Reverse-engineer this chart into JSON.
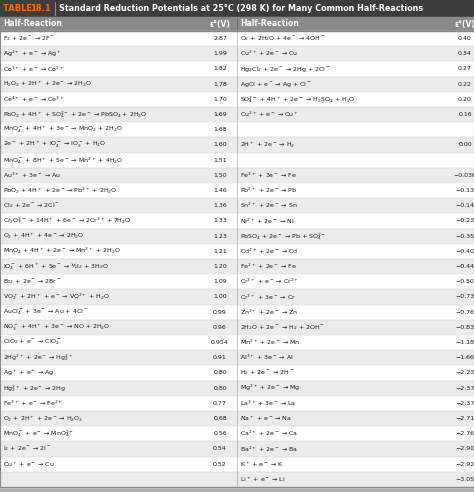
{
  "title": "Standard Reduction Potentials at 25°C (298 K) for Many Common Half-Reactions",
  "table_label": "TABLE 18.1",
  "col_headers": [
    "Half-Reaction",
    "ε°(V)",
    "Half-Reaction",
    "ε°(V)"
  ],
  "left_reactions": [
    "F$_2$ + 2e$^-$ → 2F$^-$",
    "Ag$^{2+}$ + e$^-$ → Ag$^+$",
    "Co$^{3+}$ + e$^-$ → Co$^{2+}$",
    "H$_2$O$_2$ + 2H$^+$ + 2e$^-$ → 2H$_2$O",
    "Ce$^{4+}$ + e$^-$ → Ce$^{3+}$",
    "PbO$_2$ + 4H$^+$ + SO$_4^{2-}$ + 2e$^-$ → PbSO$_4$ + 2H$_2$O",
    "MnO$_4^-$ + 4H$^+$ + 3e$^-$ → MnO$_2$ + 2H$_2$O",
    "2e$^-$ + 2H$^+$ + IO$_4^-$ → IO$_3^-$ + H$_2$O",
    "MnO$_4^-$ + 8H$^+$ + 5e$^-$ → Mn$^{2+}$ + 4H$_2$O",
    "Au$^{3+}$ + 3e$^-$ → Au",
    "PbO$_2$ + 4H$^+$ + 2e$^-$ → Pb$^{2+}$ + 2H$_2$O",
    "Cl$_2$ + 2e$^-$ → 2Cl$^-$",
    "Cr$_2$O$_7^{2-}$ + 14H$^+$ + 6e$^-$ → 2Cr$^{3+}$ + 7H$_2$O",
    "O$_2$ + 4H$^+$ + 4e$^-$ → 2H$_2$O",
    "MnO$_2$ + 4H$^+$ + 2e$^-$ → Mn$^{2+}$ + 2H$_2$O",
    "IO$_3^-$ + 6H$^+$ + 5e$^-$ → ½I$_2$ + 3H$_2$O",
    "Br$_2$ + 2e$^-$ → 2Br$^-$",
    "VO$_2^+$ + 2H$^+$ + e$^-$ → VO$^{2+}$ + H$_2$O",
    "AuCl$_4^-$ + 3e$^-$ → Au + 4Cl$^-$",
    "NO$_3^-$ + 4H$^+$ + 3e$^-$ → NO + 2H$_2$O",
    "ClO$_2$ + e$^-$ → ClO$_2^-$",
    "2Hg$^{2+}$ + 2e$^-$ → Hg$_2^{2+}$",
    "Ag$^+$ + e$^-$ → Ag",
    "Hg$_2^{2+}$ + 2e$^-$ → 2Hg",
    "Fe$^{3+}$ + e$^-$ → Fe$^{2+}$",
    "O$_2$ + 2H$^+$ + 2e$^-$ → H$_2$O$_2$",
    "MnO$_4^-$ + e$^-$ → MnO$_4^{2-}$",
    "I$_2$ + 2e$^-$ → 2I$^-$",
    "Cu$^+$ + e$^-$ → Cu"
  ],
  "left_values": [
    "2.87",
    "1.99",
    "1.82",
    "1.78",
    "1.70",
    "1.69",
    "1.68",
    "1.60",
    "1.51",
    "1.50",
    "1.46",
    "1.36",
    "1.33",
    "1.23",
    "1.21",
    "1.20",
    "1.09",
    "1.00",
    "0.99",
    "0.96",
    "0.954",
    "0.91",
    "0.80",
    "0.80",
    "0.77",
    "0.68",
    "0.56",
    "0.54",
    "0.52"
  ],
  "right_data": [
    [
      "O$_2$ + 2H$_2$O + 4e$^-$ → 4OH$^-$",
      "0.40"
    ],
    [
      "Cu$^{2+}$ + 2e$^-$ → Cu",
      "0.34"
    ],
    [
      "Hg$_2$Cl$_2$ + 2e$^-$ → 2Hg + 2Cl$^-$",
      "0.27"
    ],
    [
      "AgCl + e$^-$ → Ag + Cl$^-$",
      "0.22"
    ],
    [
      "SO$_4^{2-}$ + 4H$^+$ + 2e$^-$ → H$_2$SO$_3$ + H$_2$O",
      "0.20"
    ],
    [
      "Cu$^{2+}$ + e$^-$ → Cu$^+$",
      "0.16"
    ],
    [
      "",
      ""
    ],
    [
      "2H$^+$ + 2e$^-$ → H$_2$",
      "0.00"
    ],
    [
      "",
      ""
    ],
    [
      "Fe$^{3+}$ + 3e$^-$ → Fe",
      "−0.036"
    ],
    [
      "Pb$^{2+}$ + 2e$^-$ → Pb",
      "−0.13"
    ],
    [
      "Sn$^{2+}$ + 2e$^-$ → Sn",
      "−0.14"
    ],
    [
      "Ni$^{2+}$ + 2e$^-$ → Ni",
      "−0.23"
    ],
    [
      "PbSO$_4$ + 2e$^-$ → Pb + SO$_4^{2-}$",
      "−0.35"
    ],
    [
      "Cd$^{2+}$ + 2e$^-$ → Cd",
      "−0.40"
    ],
    [
      "Fe$^{2+}$ + 2e$^-$ → Fe",
      "−0.44"
    ],
    [
      "Cr$^{3+}$ + e$^-$ → Cr$^{2+}$",
      "−0.50"
    ],
    [
      "Cr$^{3+}$ + 3e$^-$ → Cr",
      "−0.73"
    ],
    [
      "Zn$^{2+}$ + 2e$^-$ → Zn",
      "−0.76"
    ],
    [
      "2H$_2$O + 2e$^-$ → H$_2$ + 2OH$^-$",
      "−0.83"
    ],
    [
      "Mn$^{2+}$ + 2e$^-$ → Mn",
      "−1.18"
    ],
    [
      "Al$^{3+}$ + 3e$^-$ → Al",
      "−1.66"
    ],
    [
      "H$_2$ + 2e$^-$ → 2H$^-$",
      "−2.23"
    ],
    [
      "Mg$^{2+}$ + 2e$^-$ → Mg",
      "−2.37"
    ],
    [
      "La$^{3+}$ + 3e$^-$ → La",
      "−2.37"
    ],
    [
      "Na$^+$ + e$^-$ → Na",
      "−2.71"
    ],
    [
      "Ca$^{2+}$ + 2e$^-$ → Ca",
      "−2.76"
    ],
    [
      "Ba$^{2+}$ + 2e$^-$ → Ba",
      "−2.90"
    ],
    [
      "K$^+$ + e$^-$ → K",
      "−2.92"
    ],
    [
      "Li$^+$ + e$^-$ → Li",
      "−3.05"
    ]
  ],
  "title_bar_color": "#3d3d3d",
  "title_text_color": "#FFFFFF",
  "table_label_color": "#FF6B00",
  "header_bg": "#8a8a8a",
  "header_text_color": "#FFFFFF",
  "row_bg_white": "#FFFFFF",
  "row_bg_gray": "#EBEBEB",
  "text_color": "#1a1a1a",
  "divider_line_color": "#AAAAAA",
  "grid_line_color": "#CCCCCC",
  "outer_bg": "#B0B0B0"
}
